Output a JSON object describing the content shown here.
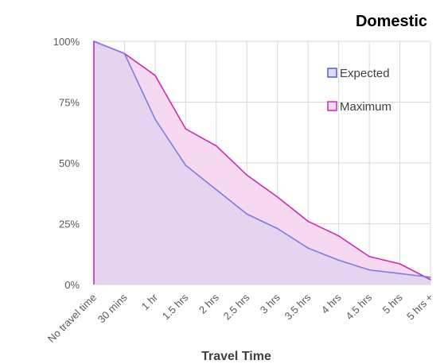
{
  "chart_data": {
    "type": "area",
    "title": "Domestic",
    "xlabel": "Travel Time",
    "ylabel": "",
    "categories": [
      "No travel time",
      "30 mins",
      "1 hr",
      "1.5 hrs",
      "2 hrs",
      "2.5 hrs",
      "3 hrs",
      "3.5 hrs",
      "4 hrs",
      "4.5 hrs",
      "5 hrs",
      "5 hrs +"
    ],
    "y_ticks": [
      "0%",
      "25%",
      "50%",
      "75%",
      "100%"
    ],
    "ylim": [
      0,
      100
    ],
    "grid": true,
    "legend_position": "top-right",
    "series": [
      {
        "name": "Expected",
        "values": [
          100,
          95,
          68,
          49,
          39,
          29,
          23,
          15,
          10,
          6,
          4.5,
          3
        ],
        "line_color": "#7b7be6",
        "fill_color": "#e2d3f0"
      },
      {
        "name": "Maximum",
        "values": [
          100,
          95,
          86,
          64,
          57,
          45,
          36,
          26,
          20,
          11.5,
          8.5,
          2
        ],
        "line_color": "#cc2bb3",
        "fill_color": "#f5d5ee"
      }
    ]
  }
}
